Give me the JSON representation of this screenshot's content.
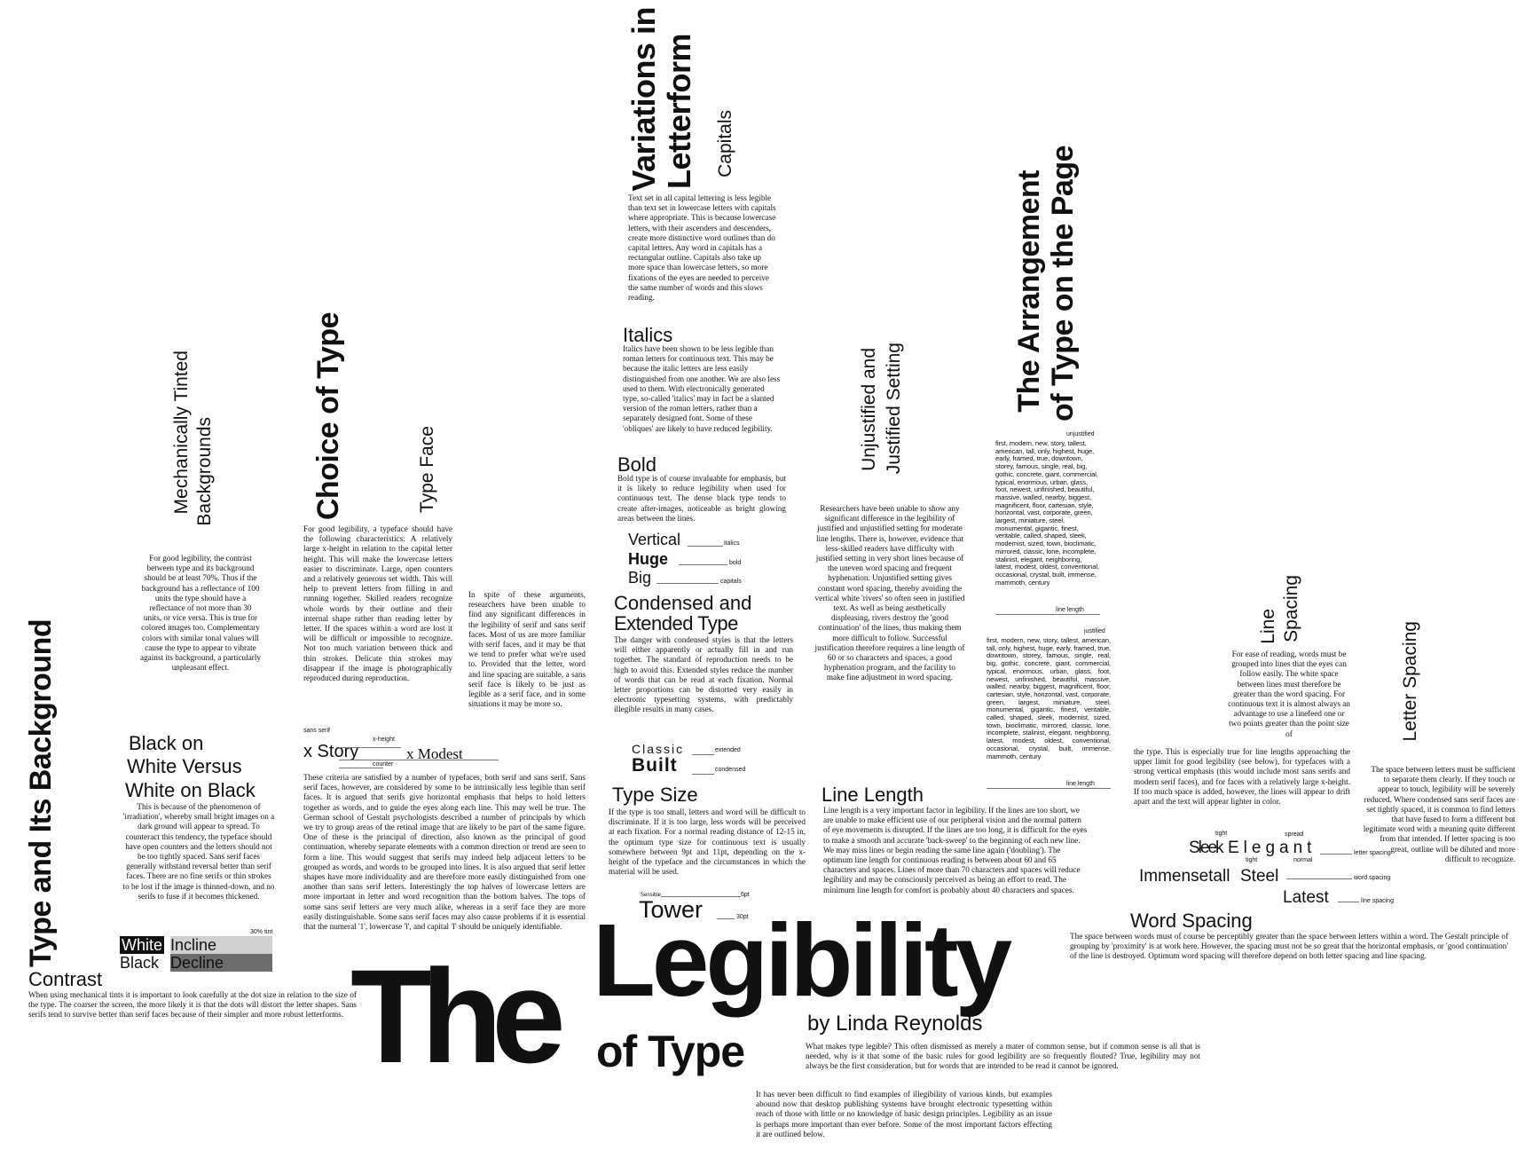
{
  "title": {
    "word_the": "The",
    "word_legibility": "Legibility",
    "word_of_type": "of Type",
    "byline": "by Linda Reynolds"
  },
  "intro": {
    "p1": "What makes type legible? This often dismissed as merely a mater of common sense, but if common sense is all that is needed, why is it that some of the basic rules for good legibility are so frequently flouted? True, legibility may not always be the first consideration, but for words that are intended to be read it cannot be ignored.",
    "p2": "It has never been difficult to find examples of illegibility of various kinds, but examples abound now that desktop publishing systems have brought electronic typesetting within reach of those with little or no knowledge of basic design principles. Legibility as an issue is perhaps more important than ever before. Some of the most important factors effecting it are outlined below."
  },
  "background": {
    "heading": "Type and Its Background",
    "contrast_heading": "Contrast",
    "contrast_text": "When using mechanical tints it is important to look carefully at the dot size in relation to the size of the type. The coarser the screen, the more likely it is that the dots will distort the letter shapes. Sans serifs tend to survive better than serif faces because of their simpler and more robust letterforms.",
    "tinted_heading_1": "Mechanically Tinted",
    "tinted_heading_2": "Backgrounds",
    "tinted_text": "For good legibility, the contrast between type and its background should be at least 70%. Thus if the background has a reflectance of 100 units the type should have a reflectance of not more than 30 units, or vice versa. This is true for colored images too. Complementary colors with similar tonal values will cause the type to appear to vibrate against its background, a particularly unpleasant effect.",
    "black_white_heading_1": "Black on",
    "black_white_heading_2": "White Versus",
    "black_white_heading_3": "White on Black",
    "black_white_text": "This is because of the phenomenon of 'irradiation', whereby small bright images on a dark ground will appear to spread. To counteract this tendency, the typeface should have open counters and the letters should not be too tightly spaced. Sans serif faces generally withstand reversal better than serif faces. There are no fine serifs or thin strokes to be lost if the image is thinned-down, and no serifs to fuse if it becomes thickened.",
    "sample_white": "White",
    "sample_black": "Black",
    "sample_incline": "Incline",
    "sample_decline": "Decline",
    "sample_tint": "30% tint"
  },
  "choice": {
    "heading": "Choice of Type",
    "subheading": "Type Face",
    "text1": "For good legibility, a typeface should have the following characteristics: A relatively large x-height in relation to the capital letter height. This will make the lowercase letters easier to discriminate. Large, open counters and a relatively generous set width. This will help to prevent letters from filling in and running together. Skilled readers recognize whole words by their outline and their internal shape rather than reading letter by letter. If the spaces within a word are lost it will be difficult or impossible to recognize. Not too much variation between thick and thin strokes. Delicate thin strokes may disappear if the image is photographically reproduced during reproduction.",
    "text2": "In spite of these arguments, researchers have been unable to find any significant differences in the legibility of serif and sans serif faces. Most of us are more familiar with serif faces, and it may be that we tend to prefer what we're used to. Provided that the letter, word and line spacing are suitable, a sans serif face is likely to be just as legible as a serif face, and in some situations it may be more so.",
    "label_sans": "sans serif",
    "label_xheight": "x-height",
    "label_counter": "counter",
    "sample_story": "x Story",
    "sample_modest": "x Modest",
    "text3": "These criteria are satisfied by a number of typefaces, both serif and sans serif. Sans serif faces, however, are considered by some to be intrinsically less legible than serif faces. It is argued that serifs give horizontal emphasis that helps to hold letters together as words, and to guide the eyes along each line. This may well be true. The German school of Gestalt psychologists described a number of principals by which we try to group areas of the retinal image that are likely to be part of the same figure. One of these is the principal of direction, also known as the principal of good continuation, whereby separate elements with a common direction or trend are seen to form a line. This would suggest that serifs may indeed help adjacent letters to be grouped as words, and words to be grouped into lines. It is also argued that serif letter shapes have more individuality and are therefore more easily distinguished from one another than sans serif letters. Interestingly the top halves of lowercase letters are more important in letter and word recognition than the bottom halves. The tops of some sans serif letters are very much alike, whereas in a serif face they are more easily distinguishable. Some sans serif faces may also cause problems if it is essential that the numeral '1', lowercase 'l', and capital 'I' should be uniquely identifiable."
  },
  "variations": {
    "heading_1": "Variations in",
    "heading_2": "Letterform",
    "capitals_heading": "Capitals",
    "capitals_text": "Text set in all capital lettering is less legible than text set in lowercase letters with capitals where appropriate. This is because lowercase letters, with their ascenders and descenders, create more distinctive word outlines than do capital letters. Any word in capitals has a rectangular outline. Capitals also take up more space than lowercase letters, so more fixations of the eyes are needed to perceive the same number of words and this slows reading.",
    "italics_heading": "Italics",
    "italics_text": "Italics have been shown to be less legible than roman letters for continuous text. This may be because the italic letters are less easily distinguished from one another. We are also less used to them. With electronically generated type, so-called 'italics' may in fact be a slanted version of the roman letters, rather than a separately designed font. Some of these 'obliques' are likely to have reduced legibility.",
    "bold_heading": "Bold",
    "bold_text": "Bold type is of course invaluable for emphasis, but it is likely to reduce legibility when used for continuous text. The dense black type tends to create after-images, noticeable as bright glowing areas between the lines.",
    "sample_vertical": "Vertical",
    "sample_huge": "Huge",
    "sample_big": "Big",
    "label_italics": "italics",
    "label_bold": "bold",
    "label_capitals": "capitals",
    "condensed_heading_1": "Condensed and",
    "condensed_heading_2": "Extended Type",
    "condensed_text": "The danger with condensed styles is that the letters will either apparently or actually fill in and run together. The standard of reproduction needs to be high to avoid this. Extended styles reduce the number of words that can be read at each fixation. Normal letter proportions can be distorted very easily in electronic typesetting systems, with predictably illegible results in many cases.",
    "sample_classic": "Classic",
    "sample_built": "Built",
    "label_extended": "extended",
    "label_condensed": "condensed"
  },
  "type_size": {
    "heading": "Type Size",
    "text": "If the type is too small, letters and word will be difficult to discriminate. If it is too large, less words will be perceived at each fixation. For a normal reading distance of 12-15 in, the optimum type size for continuous text is usually somewhere between 9pt and 11pt, depending on the x-height of the typeface and the circumstances in which the material will be used.",
    "sample_small": "Sensible",
    "sample_tower": "Tower",
    "label_6pt": "6pt",
    "label_30pt": "30pt"
  },
  "justified": {
    "heading_1": "Unjustified and",
    "heading_2": "Justified Setting",
    "text1": "Researchers have been unable to show any significant difference in the legibility of justified and unjustified setting for moderate line lengths. There is, however, evidence that less-skilled readers have difficulty with justified setting in very short lines because of the uneven word spacing and frequent hyphenation. Unjustified setting gives constant word spacing, thereby avoiding the vertical white 'rivers' so often seen in justified text. As well as being aesthetically displeasing, rivers destroy the 'good continuation' of the lines, thus making them more difficult to follow. Successful justification therefore requires a line length of 60 or so characters and spaces, a good hyphenation program, and the facility to make fine adjustment in word spacing."
  },
  "line_length": {
    "heading": "Line Length",
    "text": "Line length is a very important factor in legibility. If the lines are too short, we are unable to make efficient use of our peripheral vision and the normal pattern of eye movements is disrupted. If the lines are too long, it is difficult for the eyes to make a smooth and accurate 'back-sweep' to the beginning of each new line. We may miss lines or begin reading the same line again ('doubling'). The optimum line length for continuous reading is between about 60 and 65 characters and spaces. Lines of more than 70 characters and spaces will reduce legibility and may be consciously perceived as being an effort to read. The minimum line length for comfort is probably about 40 characters and spaces."
  },
  "arrangement": {
    "heading_1": "The Arrangement",
    "heading_2": "of Type on the Page",
    "label_unjustified": "unjustified",
    "label_line_length_1": "line length",
    "label_justified": "justified",
    "label_line_length_2": "line length",
    "unjustified_words": "first, modern, new, story, tallest, american, tall, only, highest, huge, early, framed, true, downtown, storey, famous, single, real, big, gothic, concrete, giant, commercial, typical, enormous, urban, glass, foot, newest, unfinished, beautiful, massive, walled, nearby, biggest, magnificent, floor, cartesian, style, horizontal, vast, corporate, green, largest, miniature, steel, monumental, gigantic, finest, veritable, called, shaped, sleek, modernist, sized, town, bioclimatic, mirrored, classic, lone, incomplete, stalinist, elegant, neighboring, latest, modest, oldest, conventional, occasional, crystal, built, immense, mammoth, century",
    "justified_words": "first, modern, new, story, tallest, american, tall, only, highest, huge, early, framed, true, downtown, storey, famous, single, real, big, gothic, concrete, giant, commercial, typical, enormous, urban, glass, foot, newest, unfinished, beautiful, massive, walled, nearby, biggest, magnificent, floor, cartesian, style, horizontal, vast, corporate, green, largest, miniature, steel, monumental, gigantic, finest, veritable, called, shaped, sleek, modernist, sized, town, bioclimatic, mirrored, classic, lone, incomplete, stalinist, elegant, neighboring, latest, modest, oldest, conventional, occasional, crystal, built, immense, mammoth, century"
  },
  "spacing": {
    "line_heading_1": "Line",
    "line_heading_2": "Spacing",
    "line_text_1": "For ease of reading, words must be grouped into lines that the eyes can follow easily. The white space between lines must therefore be greater than the word spacing. For continuous text it is almost always an advantage to use a linefeed one or two points greater than the point size of",
    "line_text_2": "the type. This is especially true for line lengths approaching the upper limit for good legibility (see below), for typefaces with a strong vertical emphasis (this would include most sans serifs and modern serif faces), and for faces with a relatively large x-height. If too much space is added, however, the lines will appear to drift apart and the text will appear lighter in color.",
    "letter_heading": "Letter Spacing",
    "letter_text": "The space between letters must be sufficient to separate them clearly. If they touch or appear to touch, legibility will be severely reduced. Where condensed sans serif faces are set tightly spaced, it is common to find letters that have fused to form a different but legitimate word with a meaning quite different from that intended. If letter spacing is too great, outline will be diluted and more difficult to recognize.",
    "label_tight_1": "tight",
    "label_spread": "spread",
    "sample_sleek": "Sleek",
    "sample_elegant": "Elegant",
    "label_tight_2": "tight",
    "label_normal": "normal",
    "sample_immense": "Immensetall",
    "sample_steel": "Steel",
    "sample_latest": "Latest",
    "label_letter_spacing": "letter spacing",
    "label_word_spacing": "word spacing",
    "label_line_spacing": "line spacing",
    "word_heading": "Word Spacing",
    "word_text": "The space between words must of course be perceptibly greater than the space between letters within a word. The Gestalt principle of grouping by 'proximity' is at work here. However, the spacing must not be so great that the horizontal emphasis, or 'good continuation' of the line is destroyed. Optimum word spacing will therefore depend on both letter spacing and line spacing."
  }
}
